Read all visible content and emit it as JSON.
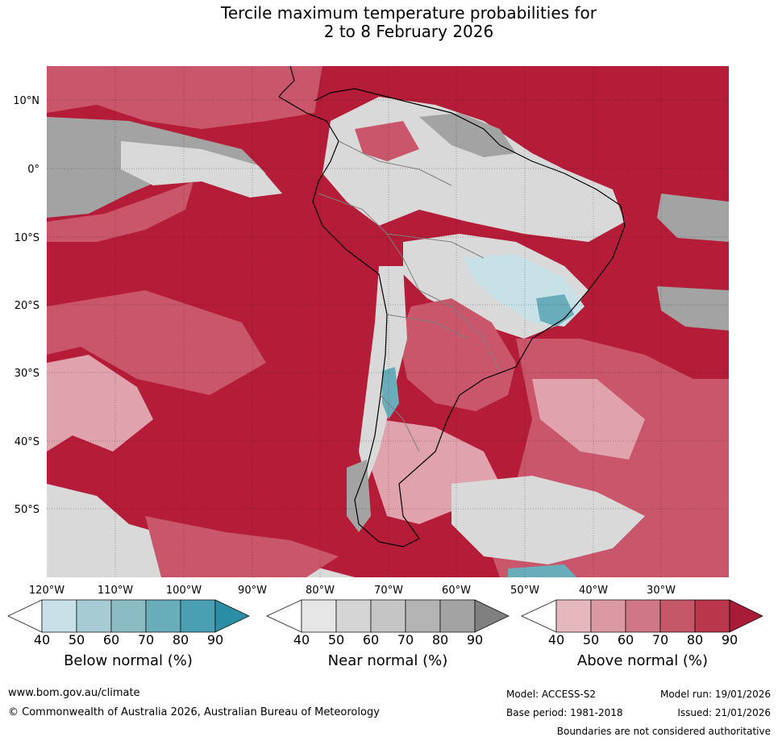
{
  "title": {
    "line1": "Tercile maximum temperature probabilities for",
    "line2": "2 to 8 February 2026"
  },
  "latitude_labels": [
    "10°N",
    "0°",
    "10°S",
    "20°S",
    "30°S",
    "40°S",
    "50°S"
  ],
  "longitude_labels": [
    "120°W",
    "110°W",
    "100°W",
    "90°W",
    "80°W",
    "70°W",
    "60°W",
    "50°W",
    "40°W",
    "30°W"
  ],
  "colorbars": [
    {
      "label": "Below normal (%)",
      "ticks": [
        "40",
        "50",
        "60",
        "70",
        "80",
        "90"
      ],
      "colors": [
        "#ffffff",
        "#c8e1e7",
        "#a7cbd2",
        "#8bbcc4",
        "#6aadba",
        "#4a9fb2",
        "#2a8ea5"
      ]
    },
    {
      "label": "Near normal (%)",
      "ticks": [
        "40",
        "50",
        "60",
        "70",
        "80",
        "90"
      ],
      "colors": [
        "#ffffff",
        "#e6e6e6",
        "#d5d5d5",
        "#c5c5c5",
        "#b4b4b4",
        "#a3a3a3",
        "#808080"
      ]
    },
    {
      "label": "Above normal (%)",
      "ticks": [
        "40",
        "50",
        "60",
        "70",
        "80",
        "90"
      ],
      "colors": [
        "#ffffff",
        "#e5b8be",
        "#db9aa3",
        "#cf7784",
        "#c45868",
        "#b9364b",
        "#a91c37"
      ]
    }
  ],
  "map_colors": {
    "ocean_above": "#b51c38",
    "above_mid": "#c9566a",
    "above_light": "#e0a2ad",
    "near_grey": "#a3a3a3",
    "near_light": "#d9d9d9",
    "below_light": "#c8e1e7",
    "below_mid": "#6aadba",
    "coast": "#000000",
    "border": "#808080"
  },
  "footer": {
    "website": "www.bom.gov.au/climate",
    "copyright": "© Commonwealth of Australia 2026, Australian Bureau of Meteorology",
    "model": "Model: ACCESS-S2",
    "base_period": "Base period: 1981-2018",
    "model_run": "Model run: 19/01/2026",
    "issued": "Issued: 21/01/2026",
    "disclaimer": "Boundaries are not considered authoritative"
  }
}
